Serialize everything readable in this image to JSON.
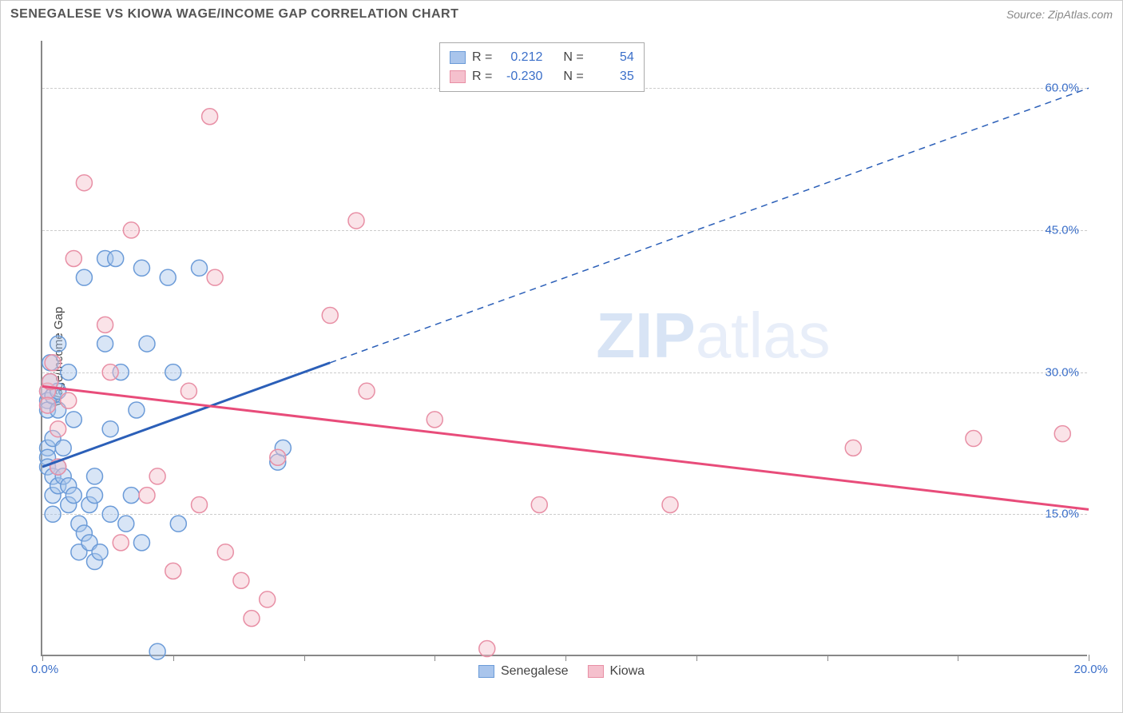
{
  "title": "SENEGALESE VS KIOWA WAGE/INCOME GAP CORRELATION CHART",
  "source": "Source: ZipAtlas.com",
  "watermark": {
    "part1": "ZIP",
    "part2": "atlas"
  },
  "y_axis_label": "Wage/Income Gap",
  "chart": {
    "type": "scatter",
    "background_color": "#ffffff",
    "grid_color": "#cccccc",
    "axis_color": "#888888",
    "xlim": [
      0,
      20
    ],
    "ylim": [
      0,
      65
    ],
    "x_ticks": [
      0,
      2.5,
      5,
      7.5,
      10,
      12.5,
      15,
      17.5,
      20
    ],
    "x_tick_labels": {
      "0": "0.0%",
      "20": "20.0%"
    },
    "y_gridlines": [
      15,
      30,
      45,
      60
    ],
    "y_tick_labels": {
      "15": "15.0%",
      "30": "30.0%",
      "45": "45.0%",
      "60": "60.0%"
    },
    "title_fontsize": 16,
    "label_fontsize": 15,
    "tick_color": "#3b6fc9",
    "marker_radius": 10,
    "marker_opacity": 0.45,
    "series": [
      {
        "name": "Senegalese",
        "color_fill": "#a9c5ec",
        "color_stroke": "#6b9bd8",
        "r_value": "0.212",
        "n_value": "54",
        "regression": {
          "x1": 0,
          "y1": 20,
          "x2": 20,
          "y2": 60,
          "solid_until_x": 5.5
        },
        "line_color": "#2b5fb8",
        "line_width": 3,
        "points": [
          [
            0.1,
            28
          ],
          [
            0.1,
            27
          ],
          [
            0.1,
            26
          ],
          [
            0.1,
            22
          ],
          [
            0.1,
            21
          ],
          [
            0.1,
            20
          ],
          [
            0.15,
            29
          ],
          [
            0.15,
            31
          ],
          [
            0.2,
            27.5
          ],
          [
            0.2,
            23
          ],
          [
            0.2,
            19
          ],
          [
            0.2,
            17
          ],
          [
            0.2,
            15
          ],
          [
            0.3,
            28
          ],
          [
            0.3,
            26
          ],
          [
            0.3,
            20
          ],
          [
            0.3,
            18
          ],
          [
            0.3,
            33
          ],
          [
            0.4,
            22
          ],
          [
            0.4,
            19
          ],
          [
            0.5,
            30
          ],
          [
            0.5,
            18
          ],
          [
            0.5,
            16
          ],
          [
            0.6,
            25
          ],
          [
            0.6,
            17
          ],
          [
            0.7,
            14
          ],
          [
            0.7,
            11
          ],
          [
            0.8,
            40
          ],
          [
            0.8,
            13
          ],
          [
            0.9,
            12
          ],
          [
            0.9,
            16
          ],
          [
            1.0,
            10
          ],
          [
            1.0,
            19
          ],
          [
            1.0,
            17
          ],
          [
            1.1,
            11
          ],
          [
            1.2,
            42
          ],
          [
            1.2,
            33
          ],
          [
            1.3,
            15
          ],
          [
            1.3,
            24
          ],
          [
            1.4,
            42
          ],
          [
            1.5,
            30
          ],
          [
            1.6,
            14
          ],
          [
            1.7,
            17
          ],
          [
            1.8,
            26
          ],
          [
            1.9,
            12
          ],
          [
            1.9,
            41
          ],
          [
            2.0,
            33
          ],
          [
            2.2,
            0.5
          ],
          [
            2.4,
            40
          ],
          [
            2.5,
            30
          ],
          [
            2.6,
            14
          ],
          [
            3.0,
            41
          ],
          [
            4.5,
            20.5
          ],
          [
            4.6,
            22
          ]
        ]
      },
      {
        "name": "Kiowa",
        "color_fill": "#f5c0cd",
        "color_stroke": "#e88fa5",
        "r_value": "-0.230",
        "n_value": "35",
        "regression": {
          "x1": 0,
          "y1": 28.5,
          "x2": 20,
          "y2": 15.5,
          "solid_until_x": 20
        },
        "line_color": "#e84c7a",
        "line_width": 3,
        "points": [
          [
            0.1,
            28
          ],
          [
            0.1,
            26.5
          ],
          [
            0.15,
            29
          ],
          [
            0.2,
            31
          ],
          [
            0.3,
            24
          ],
          [
            0.3,
            20
          ],
          [
            0.5,
            27
          ],
          [
            0.6,
            42
          ],
          [
            0.8,
            50
          ],
          [
            1.2,
            35
          ],
          [
            1.3,
            30
          ],
          [
            1.5,
            12
          ],
          [
            1.7,
            45
          ],
          [
            2.0,
            17
          ],
          [
            2.2,
            19
          ],
          [
            2.5,
            9
          ],
          [
            2.8,
            28
          ],
          [
            3.0,
            16
          ],
          [
            3.2,
            57
          ],
          [
            3.3,
            40
          ],
          [
            3.5,
            11
          ],
          [
            3.8,
            8
          ],
          [
            4.0,
            4
          ],
          [
            4.3,
            6
          ],
          [
            4.5,
            21
          ],
          [
            5.5,
            36
          ],
          [
            6.0,
            46
          ],
          [
            6.2,
            28
          ],
          [
            7.5,
            25
          ],
          [
            8.5,
            0.8
          ],
          [
            9.5,
            16
          ],
          [
            12.0,
            16
          ],
          [
            15.5,
            22
          ],
          [
            17.8,
            23
          ],
          [
            19.5,
            23.5
          ]
        ]
      }
    ]
  },
  "legend_top": {
    "r_label": "R =",
    "n_label": "N ="
  },
  "legend_bottom_labels": [
    "Senegalese",
    "Kiowa"
  ]
}
